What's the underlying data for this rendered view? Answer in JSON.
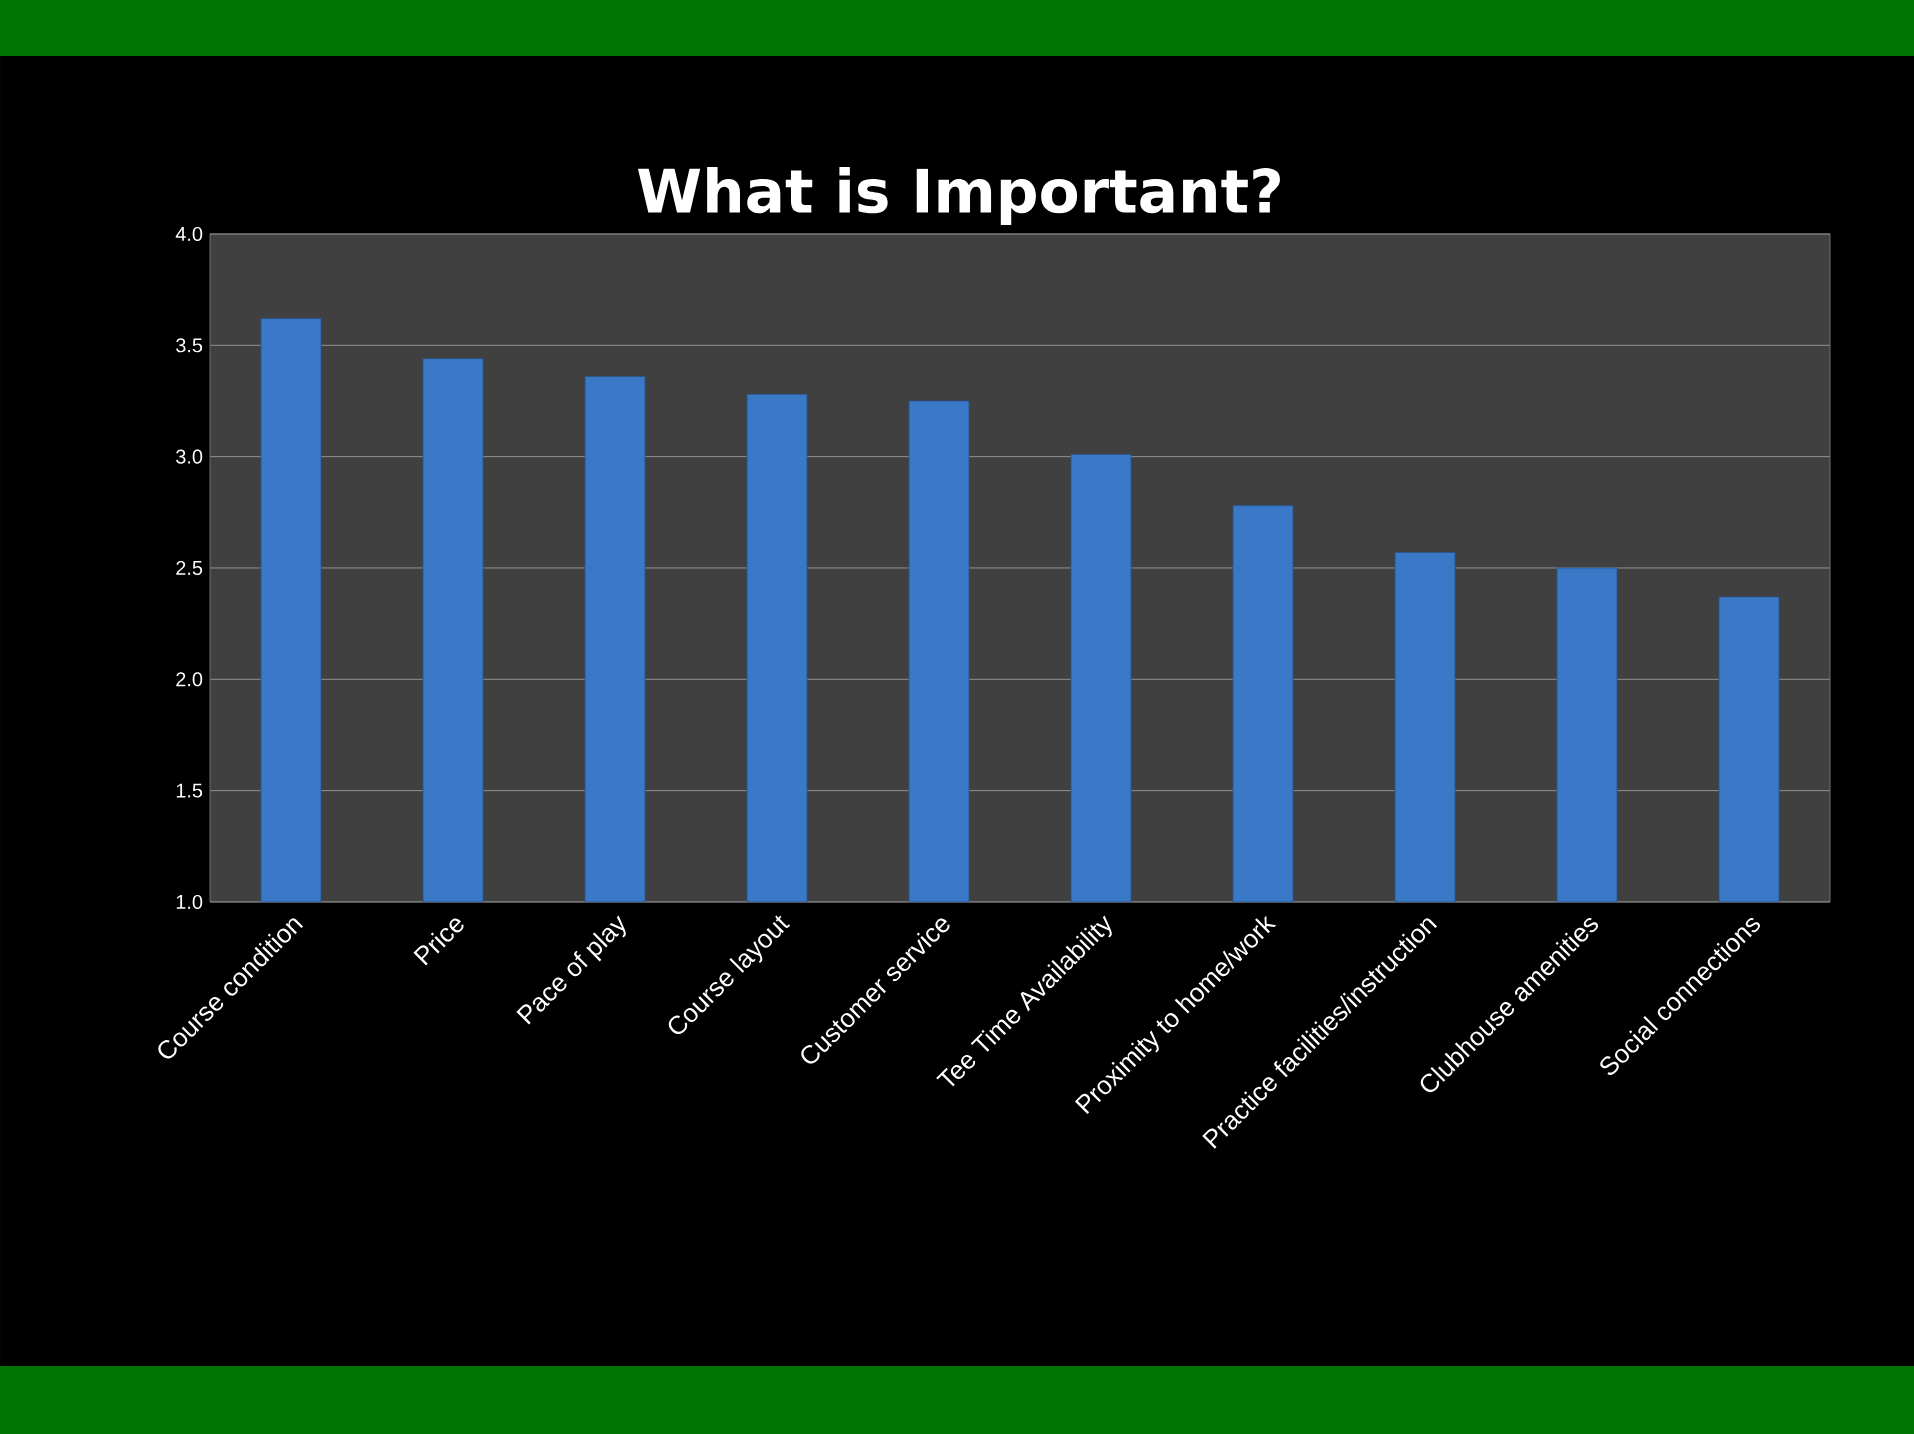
{
  "chart_data": {
    "type": "bar",
    "title": "What is Important?",
    "categories": [
      "Course condition",
      "Price",
      "Pace of play",
      "Course layout",
      "Customer service",
      "Tee Time Availability",
      "Proximity to home/work",
      "Practice facilities/instruction",
      "Clubhouse amenities",
      "Social connections"
    ],
    "values": [
      3.62,
      3.44,
      3.36,
      3.28,
      3.25,
      3.01,
      2.78,
      2.57,
      2.5,
      2.37
    ],
    "color": "#3a78c8",
    "ylim": [
      1,
      4
    ],
    "yticks": [
      {
        "value": 1,
        "label": "1.0"
      },
      {
        "value": 1.5,
        "label": "1.5"
      },
      {
        "value": 2,
        "label": "2.0"
      },
      {
        "value": 2.5,
        "label": "2.5"
      },
      {
        "value": 3,
        "label": "3.0"
      },
      {
        "value": 3.5,
        "label": "3.5"
      },
      {
        "value": 4,
        "label": "4.0"
      }
    ],
    "grid": "y"
  }
}
